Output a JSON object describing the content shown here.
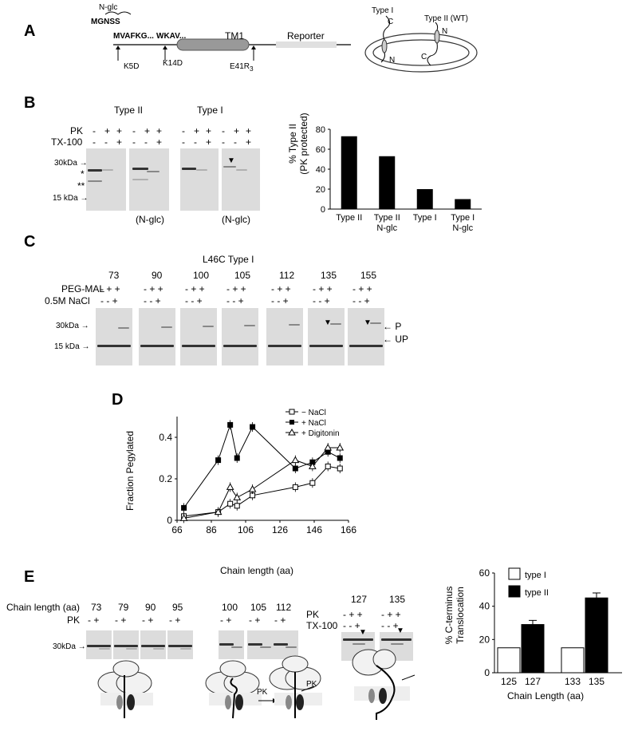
{
  "panelA": {
    "letter": "A",
    "nglc": "N-glc",
    "mgnss": "MGNSS",
    "seq1": "MVAFKG...",
    "seq2": "WKAV...",
    "tm1": "TM1",
    "reporter": "Reporter",
    "mut1": "K5D",
    "mut2": "K14D",
    "mut3": "E41R",
    "mut3_sub": "3",
    "type1": "Type I",
    "type2": "Type II (WT)",
    "c": "C",
    "n": "N"
  },
  "panelB": {
    "letter": "B",
    "type2": "Type II",
    "type1": "Type I",
    "pk": "PK",
    "tx": "TX-100",
    "pk_signs": [
      "-",
      "+",
      "+"
    ],
    "tx_signs": [
      "-",
      "-",
      "+"
    ],
    "mw30": "30kDa",
    "mw15": "15 kDa",
    "star1": "*",
    "star2": "**",
    "nglc": "(N-glc)",
    "triangle": "▼"
  },
  "chart_data": {
    "type": "bar",
    "ylabel": "% Type II\n(PK  protected)",
    "ylabel_l1": "% Type II",
    "ylabel_l2": "(PK  protected)",
    "categories": [
      "Type  II",
      "Type  II N-glc",
      "Type  I",
      "Type  I N-glc"
    ],
    "cat_l1": [
      "Type  II",
      "Type  II",
      "Type  I",
      "Type  I"
    ],
    "cat_l2": [
      "",
      "N-glc",
      "",
      "N-glc"
    ],
    "values": [
      73,
      53,
      20,
      10
    ],
    "ylim": [
      0,
      80
    ],
    "yticks": [
      "0",
      "20",
      "40",
      "60",
      "80"
    ],
    "bar_color": "#000000"
  },
  "panelC": {
    "letter": "C",
    "title": "L46C Type I",
    "lengths": [
      "73",
      "90",
      "100",
      "105",
      "112",
      "135",
      "155"
    ],
    "pegmal": "PEG-MAL",
    "nacl": "0.5M NaCl",
    "peg_signs": [
      "-",
      "+",
      "+"
    ],
    "nacl_signs": [
      "-",
      "-",
      "+"
    ],
    "mw30": "30kDa",
    "mw15": "15 kDa",
    "p": "P",
    "up": "UP"
  },
  "panelD": {
    "letter": "D",
    "ylabel": "Fraction  Pegylated",
    "xlabel": "Chain length (aa)",
    "xticks": [
      "66",
      "86",
      "106",
      "126",
      "146",
      "166"
    ],
    "yticks": [
      "0",
      "0.2",
      "0.4"
    ],
    "legend": [
      "−  NaCl",
      "+  NaCl",
      "+  Digitonin"
    ],
    "xlim": [
      66,
      166
    ],
    "ylim": [
      0,
      0.5
    ],
    "series": [
      {
        "name": "−  NaCl",
        "marker": "open-square",
        "x": [
          70,
          90,
          97,
          101,
          110,
          135,
          145,
          154,
          161
        ],
        "y": [
          0.02,
          0.04,
          0.08,
          0.07,
          0.12,
          0.16,
          0.18,
          0.26,
          0.25
        ]
      },
      {
        "name": "+  NaCl",
        "marker": "filled-square",
        "x": [
          70,
          90,
          97,
          101,
          110,
          135,
          145,
          154,
          161
        ],
        "y": [
          0.06,
          0.29,
          0.46,
          0.3,
          0.45,
          0.25,
          0.28,
          0.33,
          0.3
        ]
      },
      {
        "name": "+  Digitonin",
        "marker": "open-triangle",
        "x": [
          70,
          90,
          97,
          101,
          110,
          135,
          145,
          154,
          161
        ],
        "y": [
          0.01,
          0.04,
          0.16,
          0.11,
          0.15,
          0.29,
          0.26,
          0.35,
          0.35
        ]
      }
    ]
  },
  "panelE": {
    "letter": "E",
    "chainlength": "Chain length (aa)",
    "pk": "PK",
    "tx": "TX-100",
    "group1": [
      "73",
      "79",
      "90",
      "95"
    ],
    "group2": [
      "100",
      "105",
      "112"
    ],
    "group3": [
      "127",
      "135"
    ],
    "signs2": [
      "-",
      "+"
    ],
    "signs3pk": [
      "-",
      "+",
      "+"
    ],
    "signs3tx": [
      "-",
      "-",
      "+"
    ],
    "mw30": "30kDa",
    "arrow_pk1": "PK",
    "arrow_pk2": "PK",
    "triangle": "▼"
  },
  "chartE": {
    "type": "bar",
    "ylabel_l1": "% C-terminus",
    "ylabel_l2": "Translocation",
    "xlabel": "Chain Length  (aa)",
    "categories": [
      "125",
      "127",
      "133",
      "135"
    ],
    "values": [
      15,
      29,
      15,
      45
    ],
    "errors": [
      0,
      2.5,
      0,
      3
    ],
    "colors": [
      "#ffffff",
      "#000000",
      "#ffffff",
      "#000000"
    ],
    "ylim": [
      0,
      60
    ],
    "yticks": [
      "0",
      "20",
      "40",
      "60"
    ],
    "legend": [
      "type I",
      "type II"
    ]
  }
}
